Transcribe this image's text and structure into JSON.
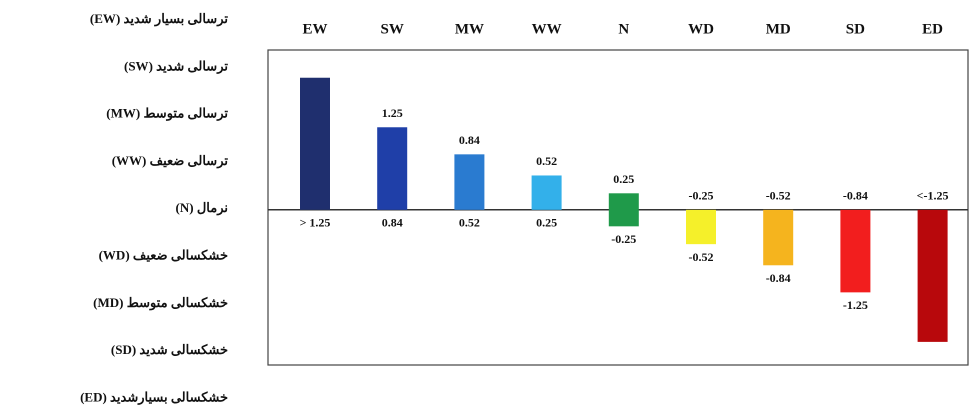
{
  "chart_data": {
    "type": "floating-bar",
    "categories": [
      "EW",
      "SW",
      "MW",
      "WW",
      "N",
      "WD",
      "MD",
      "SD",
      "ED"
    ],
    "values": [
      2.0,
      1.25,
      0.84,
      0.52,
      0.25,
      -0.52,
      -0.84,
      -1.25,
      -2.0
    ],
    "starts": [
      0,
      0,
      0,
      0,
      -0.25,
      0,
      0,
      0,
      0
    ],
    "upper_labels": [
      null,
      "1.25",
      "0.84",
      "0.52",
      "0.25",
      "-0.25",
      "-0.52",
      "-0.84",
      "<-1.25"
    ],
    "lower_labels": [
      "> 1.25",
      "0.84",
      "0.52",
      "0.25",
      "-0.25",
      "-0.52",
      "-0.84",
      "-1.25",
      null
    ],
    "colors": [
      "#1f2f6e",
      "#1f3fa8",
      "#2a7bd0",
      "#33b0ea",
      "#1f9a4a",
      "#f5f02a",
      "#f5b41e",
      "#f21e1e",
      "#b8080c"
    ],
    "ylim": [
      -2.35,
      2.42
    ],
    "legend": [
      "ترسالی بسیار شدید (EW)",
      "ترسالی شدید (SW)",
      "ترسالی متوسط (MW)",
      "ترسالی ضعیف (WW)",
      "نرمال (N)",
      "خشکسالی ضعیف (WD)",
      "خشکسالی متوسط (MD)",
      "خشکسالی شدید (SD)",
      "خشکسالی بسیارشدید (ED)"
    ]
  }
}
